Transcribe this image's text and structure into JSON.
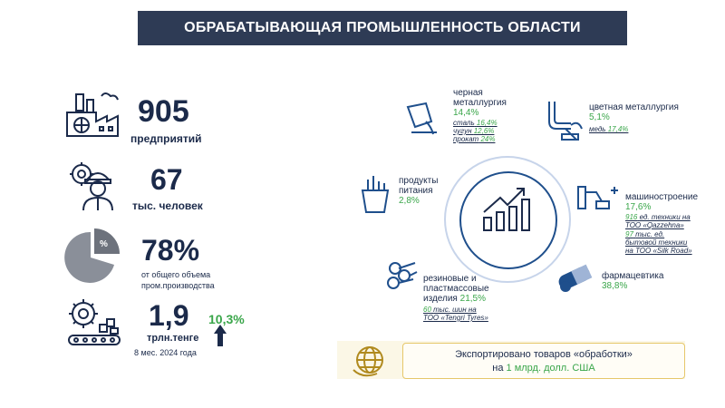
{
  "header": {
    "title": "ОБРАБАТЫВАЮЩАЯ ПРОМЫШЛЕННОСТЬ ОБЛАСТИ"
  },
  "stats": {
    "enterprises": {
      "value": "905",
      "label": "предприятий"
    },
    "employees": {
      "value": "67",
      "label": "тыс. человек"
    },
    "share": {
      "value": "78%",
      "label_line1": "от общего объема",
      "label_line2": "пром.производства"
    },
    "volume": {
      "value": "1,9",
      "unit": "трлн.тенге",
      "period": "8 мес. 2024 года",
      "growth": "10,3%"
    }
  },
  "sectors": {
    "ferrous": {
      "name_line1": "черная",
      "name_line2": "металлургия",
      "pct": "14,4%",
      "details": [
        {
          "label": "сталь",
          "value": "16,4%"
        },
        {
          "label": "чугун",
          "value": "12,6%"
        },
        {
          "label": "прокат",
          "value": "24%"
        }
      ]
    },
    "nonferrous": {
      "name": "цветная металлургия",
      "pct": "5,1%",
      "details": [
        {
          "label": "медь",
          "value": "17,4%"
        }
      ]
    },
    "food": {
      "name_line1": "продукты",
      "name_line2": "питания",
      "pct": "2,8%"
    },
    "machinery": {
      "name": "машиностроение",
      "pct": "17,6%",
      "details": [
        {
          "value": "916",
          "text": "ед. техники на"
        },
        {
          "text": "ТОО «Qazzehna»"
        },
        {
          "value": "97",
          "text": "тыс. ед."
        },
        {
          "text": "бытовой техники"
        },
        {
          "text": "на ТОО «Silk Road»"
        }
      ]
    },
    "rubber": {
      "name_line1": "резиновые и",
      "name_line2": "пластмассовые",
      "name_line3": "изделия",
      "pct": "21,5%",
      "details": [
        {
          "value": "60",
          "text": "тыс. шин на"
        },
        {
          "text": "ТОО «Tengri Tyres»"
        }
      ]
    },
    "pharma": {
      "name": "фармацевтика",
      "pct": "38,8%"
    }
  },
  "export": {
    "line1": "Экспортировано товаров «обработки»",
    "line2_prefix": "на ",
    "line2_value": "1 млрд. долл. США"
  },
  "colors": {
    "navy": "#2e3b55",
    "green": "#3aa64a",
    "blue": "#1f4f8c"
  },
  "icons": [
    "factory-icon",
    "worker-gear-icon",
    "pie-chart-icon",
    "conveyor-gear-icon",
    "arrow-up-icon",
    "bucket-pour-icon",
    "pipe-icon",
    "food-basket-icon",
    "robot-arm-icon",
    "pipes-icon",
    "pill-icon",
    "growth-chart-icon",
    "globe-icon"
  ]
}
